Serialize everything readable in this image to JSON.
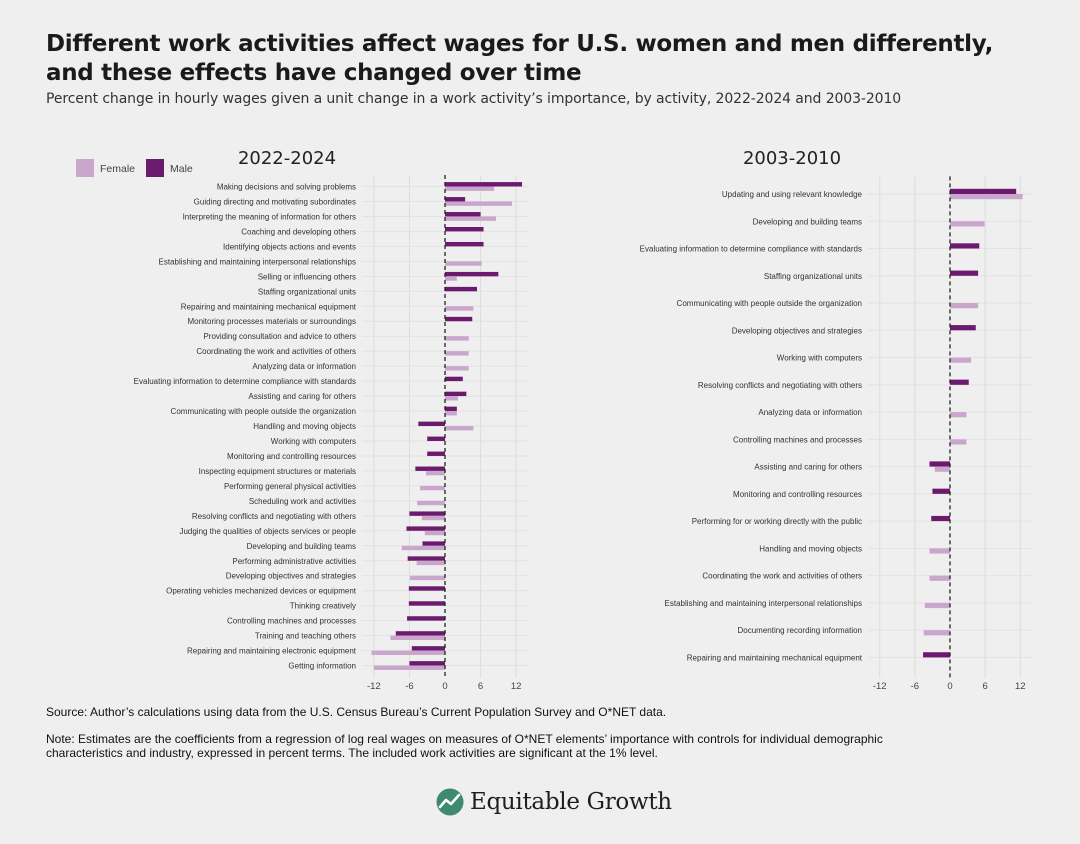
{
  "title": "Different work activities affect wages for U.S. women and men differently, and these effects have changed over time",
  "subtitle": "Percent change in hourly wages given a unit change in a work activity’s importance, by activity, 2022-2024 and 2003-2010",
  "legend": [
    {
      "label": "Female",
      "color": "#c9a7cc"
    },
    {
      "label": "Male",
      "color": "#6b1a6e"
    }
  ],
  "source": "Source: Author’s calculations using data from the U.S. Census Bureau’s Current Population Survey and O*NET data.",
  "note": "Note: Estimates are the coefficients from a regression of log real wages on measures of O*NET elements’ importance with controls for individual demographic characteristics and industry, expressed in percent terms. The included work activities are significant at the 1% level.",
  "brand": {
    "name": "Equitable Growth",
    "icon": "growth-chart-icon",
    "icon_color": "#3e8a6e"
  },
  "chart_data": [
    {
      "type": "bar",
      "orientation": "horizontal",
      "title": "2022-2024",
      "xlim": [
        -14,
        14
      ],
      "xticks": [
        -12,
        -6,
        0,
        6,
        12
      ],
      "categories": [
        "Making decisions and solving problems",
        "Guiding directing and motivating subordinates",
        "Interpreting the meaning of information for others",
        "Coaching and developing others",
        "Identifying objects actions and events",
        "Establishing and maintaining interpersonal relationships",
        "Selling or influencing others",
        "Staffing organizational units",
        "Repairing and maintaining mechanical equipment",
        "Monitoring processes materials or surroundings",
        "Providing consultation and advice to others",
        "Coordinating the work and activities of others",
        "Analyzing data or information",
        "Evaluating information to determine compliance with standards",
        "Assisting and caring for others",
        "Communicating with people outside the organization",
        "Handling and moving objects",
        "Working with computers",
        "Monitoring and controlling resources",
        "Inspecting equipment structures or materials",
        "Performing general physical activities",
        "Scheduling work and activities",
        "Resolving conflicts and negotiating with others",
        "Judging the qualities of objects services or people",
        "Developing and building teams",
        "Performing administrative activities",
        "Developing objectives and strategies",
        "Operating vehicles mechanized devices or equipment",
        "Thinking creatively",
        "Controlling machines and processes",
        "Training and teaching others",
        "Repairing and maintaining electronic equipment",
        "Getting information"
      ],
      "series": [
        {
          "name": "Male",
          "values": [
            13.0,
            3.4,
            6.0,
            6.5,
            6.5,
            0.0,
            9.0,
            5.4,
            0.0,
            4.6,
            0.0,
            0.0,
            0.0,
            3.0,
            3.6,
            2.0,
            -4.5,
            -3.0,
            -3.0,
            -5.0,
            0.0,
            0.0,
            -6.0,
            -6.5,
            -3.8,
            -6.3,
            0.0,
            -6.1,
            -6.1,
            -6.4,
            -8.3,
            -5.6,
            -6.0
          ]
        },
        {
          "name": "Female",
          "values": [
            8.3,
            11.3,
            8.6,
            0.0,
            0.0,
            6.2,
            2.0,
            0.0,
            4.8,
            0.0,
            4.0,
            4.0,
            4.0,
            0.0,
            2.2,
            2.0,
            4.8,
            0.0,
            0.0,
            -3.2,
            -4.2,
            -4.7,
            -3.9,
            -3.4,
            -7.3,
            -4.8,
            -5.9,
            0.0,
            0.0,
            0.0,
            -9.2,
            -12.4,
            -12.0
          ]
        }
      ]
    },
    {
      "type": "bar",
      "orientation": "horizontal",
      "title": "2003-2010",
      "xlim": [
        -14,
        14
      ],
      "xticks": [
        -12,
        -6,
        0,
        6,
        12
      ],
      "categories": [
        "Updating and using relevant knowledge",
        "Developing and building teams",
        "Evaluating information to determine compliance with standards",
        "Staffing organizational units",
        "Communicating with people outside the organization",
        "Developing objectives and strategies",
        "Working with computers",
        "Resolving conflicts and negotiating with others",
        "Analyzing data or information",
        "Controlling machines and processes",
        "Assisting and caring for others",
        "Monitoring and controlling resources",
        "Performing for or working directly with the public",
        "Handling and moving objects",
        "Coordinating the work and activities of others",
        "Establishing and maintaining interpersonal relationships",
        "Documenting recording information",
        "Repairing and maintaining mechanical equipment"
      ],
      "series": [
        {
          "name": "Male",
          "values": [
            11.3,
            0.0,
            5.0,
            4.8,
            0.0,
            4.4,
            0.0,
            3.2,
            0.0,
            0.0,
            -3.5,
            -3.0,
            -3.2,
            0.0,
            0.0,
            0.0,
            0.0,
            -4.6
          ]
        },
        {
          "name": "Female",
          "values": [
            12.4,
            5.9,
            0.0,
            0.0,
            4.8,
            0.0,
            3.6,
            0.0,
            2.8,
            2.8,
            -2.6,
            0.0,
            0.0,
            -3.5,
            -3.5,
            -4.3,
            -4.5,
            0.0
          ]
        }
      ]
    }
  ]
}
